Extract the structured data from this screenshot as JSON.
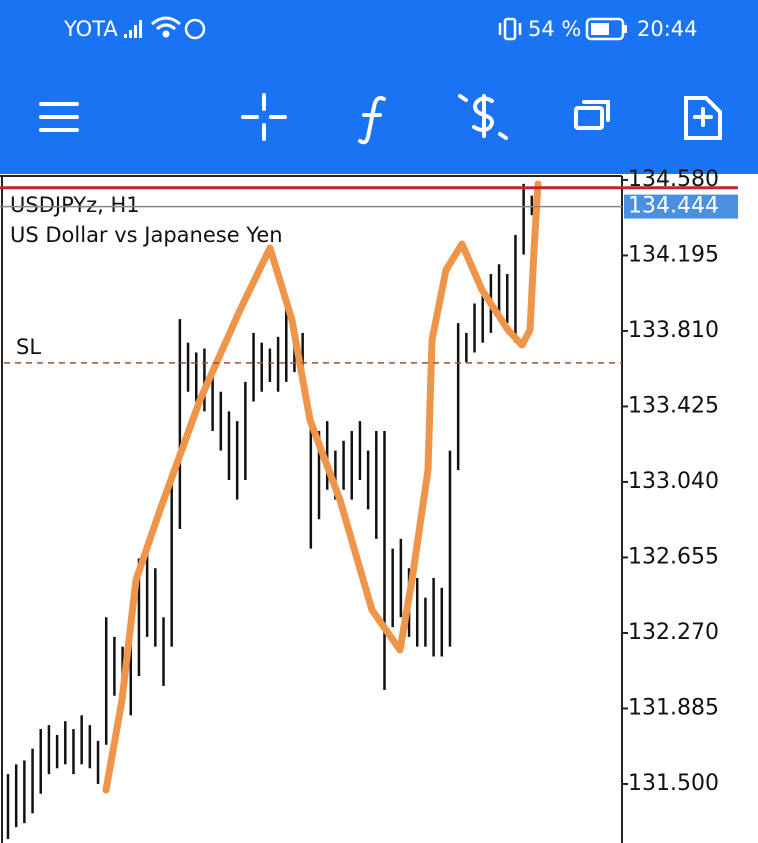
{
  "status_bar": {
    "carrier": "YOTA",
    "battery": "54 %",
    "time": "20:44"
  },
  "chart_data": {
    "type": "ohlc",
    "title": "USDJPYz, H1",
    "subtitle": "US Dollar vs Japanese Yen",
    "color": "#111111",
    "high": [
      131.55,
      131.6,
      131.62,
      131.68,
      131.78,
      131.8,
      131.75,
      131.82,
      131.78,
      131.85,
      131.8,
      131.72,
      132.35,
      132.25,
      132.2,
      132.3,
      132.65,
      132.72,
      132.6,
      132.35,
      133.1,
      133.87,
      133.75,
      133.7,
      133.72,
      133.6,
      133.5,
      133.4,
      133.35,
      133.55,
      133.8,
      133.75,
      133.72,
      133.78,
      133.92,
      133.85,
      133.8,
      133.4,
      133.3,
      133.35,
      133.2,
      133.25,
      133.3,
      133.35,
      133.2,
      133.3,
      133.3,
      132.7,
      132.75,
      132.6,
      132.55,
      132.45,
      132.55,
      132.5,
      133.2,
      133.85,
      133.8,
      133.95,
      134.0,
      134.1,
      134.15,
      134.1,
      134.3,
      134.56,
      134.5
    ],
    "low": [
      131.22,
      131.28,
      131.3,
      131.35,
      131.45,
      131.55,
      131.58,
      131.6,
      131.55,
      131.6,
      131.58,
      131.5,
      131.7,
      131.95,
      131.92,
      131.85,
      132.05,
      132.25,
      132.2,
      132.0,
      132.2,
      132.8,
      133.5,
      133.45,
      133.4,
      133.3,
      133.2,
      133.05,
      132.95,
      133.05,
      133.45,
      133.5,
      133.55,
      133.5,
      133.55,
      133.6,
      133.55,
      132.7,
      132.85,
      133.0,
      132.95,
      133.0,
      132.95,
      133.05,
      132.9,
      132.75,
      131.98,
      132.3,
      132.35,
      132.25,
      132.2,
      132.2,
      132.15,
      132.15,
      132.2,
      133.1,
      133.65,
      133.7,
      133.75,
      133.8,
      133.9,
      133.85,
      133.75,
      134.2,
      134.4
    ],
    "ylim": [
      131.199,
      134.6
    ],
    "yticks": [
      {
        "value": 134.58,
        "label": "134.580"
      },
      134.195,
      {
        "value": 133.81,
        "label": "133.810"
      },
      133.425,
      {
        "value": 133.04,
        "label": "133.040"
      },
      132.655,
      {
        "value": 132.27,
        "label": "132.270"
      },
      131.885,
      {
        "value": 131.5,
        "label": "131.500"
      }
    ],
    "bid": 134.444,
    "bid_color": "#4a8fe0",
    "ask": 134.54,
    "ask_color": "#c0282d",
    "stop_loss": {
      "label": "SL",
      "value": 133.647,
      "color": "#a0522d"
    }
  }
}
